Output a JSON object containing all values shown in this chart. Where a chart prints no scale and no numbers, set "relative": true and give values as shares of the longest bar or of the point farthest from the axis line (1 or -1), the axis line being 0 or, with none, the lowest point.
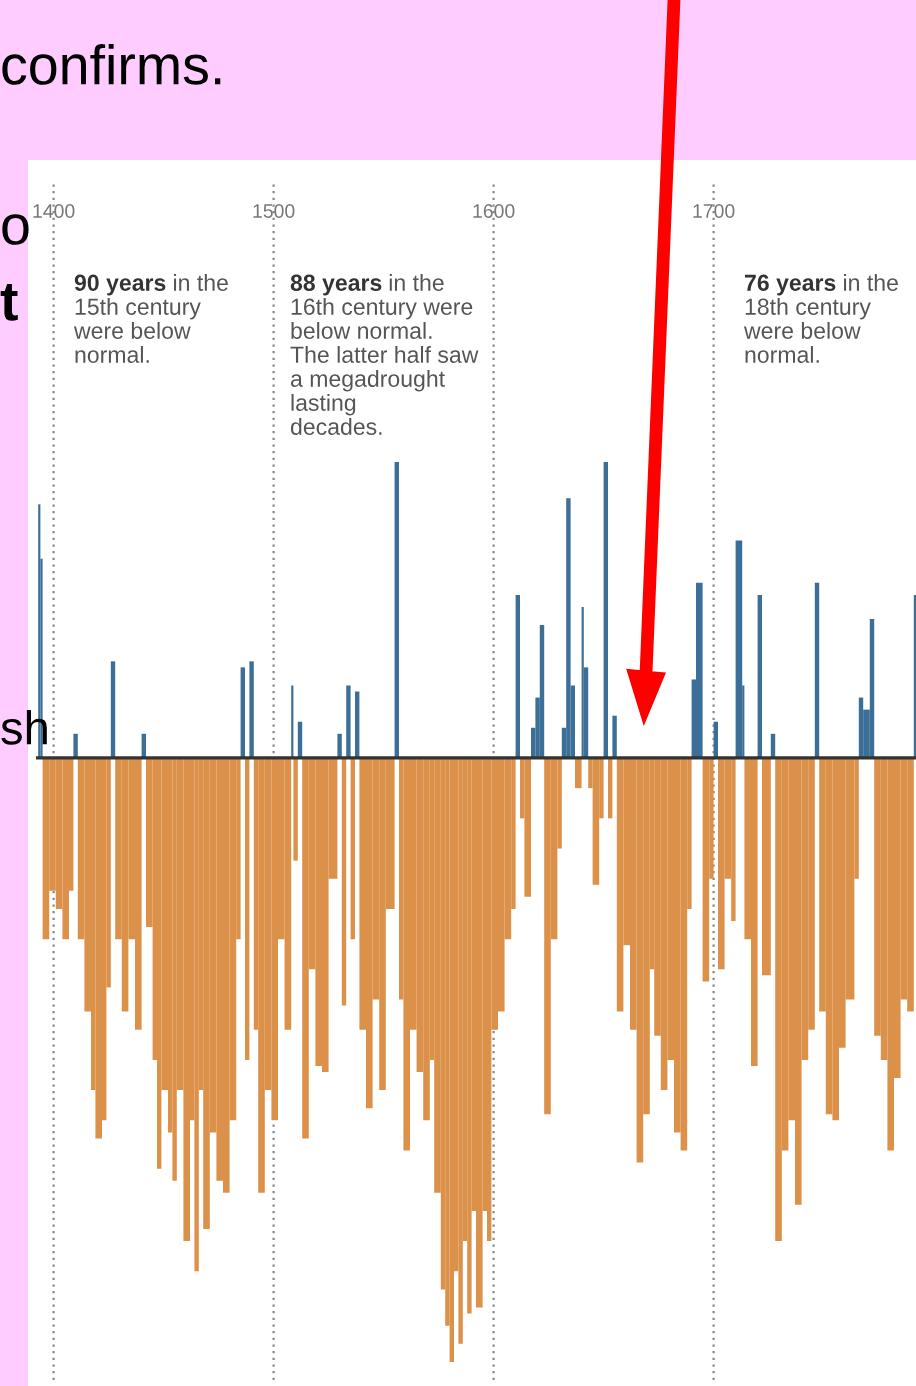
{
  "chart_data": {
    "type": "bar",
    "relative": true,
    "x": [
      1393,
      1394,
      1395,
      1398,
      1401,
      1404,
      1407,
      1409,
      1411,
      1414,
      1417,
      1419,
      1422,
      1424,
      1426,
      1428,
      1431,
      1434,
      1437,
      1440,
      1442,
      1445,
      1447,
      1449,
      1452,
      1454,
      1456,
      1459,
      1462,
      1464,
      1466,
      1468,
      1471,
      1474,
      1477,
      1480,
      1483,
      1485,
      1487,
      1489,
      1491,
      1493,
      1496,
      1499,
      1502,
      1505,
      1508,
      1509,
      1511,
      1513,
      1516,
      1519,
      1522,
      1525,
      1529,
      1531,
      1533,
      1535,
      1537,
      1539,
      1542,
      1545,
      1548,
      1551,
      1555,
      1557,
      1559,
      1562,
      1565,
      1568,
      1571,
      1573,
      1576,
      1578,
      1580,
      1582,
      1584,
      1586,
      1588,
      1590,
      1592,
      1595,
      1597,
      1599,
      1602,
      1605,
      1608,
      1610,
      1612,
      1614,
      1617,
      1619,
      1621,
      1623,
      1626,
      1629,
      1631,
      1633,
      1635,
      1637,
      1640,
      1641,
      1643,
      1645,
      1648,
      1650,
      1652,
      1654,
      1656,
      1659,
      1662,
      1665,
      1668,
      1671,
      1673,
      1676,
      1679,
      1682,
      1685,
      1688,
      1690,
      1692,
      1695,
      1698,
      1700,
      1702,
      1705,
      1708,
      1710,
      1713,
      1714,
      1717,
      1720,
      1722,
      1726,
      1728,
      1731,
      1734,
      1737,
      1740,
      1743,
      1746,
      1748,
      1751,
      1754,
      1757,
      1760,
      1764,
      1766,
      1768,
      1771,
      1773,
      1776,
      1779,
      1782,
      1785,
      1788,
      1791
    ],
    "values": [
      0.42,
      0.33,
      -0.3,
      -0.22,
      -0.25,
      -0.3,
      -0.22,
      0.04,
      -0.3,
      -0.42,
      -0.55,
      -0.63,
      -0.6,
      -0.38,
      0.16,
      -0.3,
      -0.42,
      -0.3,
      -0.45,
      0.04,
      -0.28,
      -0.5,
      -0.68,
      -0.55,
      -0.62,
      -0.7,
      -0.55,
      -0.8,
      -0.6,
      -0.85,
      -0.55,
      -0.78,
      -0.62,
      -0.7,
      -0.72,
      -0.6,
      -0.3,
      0.15,
      -0.5,
      0.16,
      -0.45,
      -0.72,
      -0.55,
      -0.6,
      -0.3,
      -0.45,
      0.12,
      -0.17,
      0.06,
      -0.63,
      -0.35,
      -0.51,
      -0.52,
      -0.2,
      0.04,
      -0.41,
      0.12,
      -0.3,
      0.11,
      -0.45,
      -0.58,
      -0.4,
      -0.55,
      -0.25,
      0.49,
      -0.4,
      -0.65,
      -0.45,
      -0.52,
      -0.6,
      -0.5,
      -0.72,
      -0.88,
      -0.94,
      -1.0,
      -0.85,
      -0.97,
      -0.8,
      -0.92,
      -0.75,
      -0.91,
      -0.75,
      -0.8,
      -0.45,
      -0.42,
      -0.3,
      -0.25,
      0.27,
      -0.1,
      -0.23,
      0.05,
      0.1,
      0.22,
      -0.59,
      -0.3,
      -0.15,
      0.05,
      0.43,
      0.12,
      -0.05,
      0.25,
      0.15,
      -0.05,
      -0.21,
      -0.1,
      0.49,
      -0.1,
      0.07,
      -0.42,
      -0.31,
      -0.45,
      -0.67,
      -0.59,
      -0.35,
      -0.46,
      -0.55,
      -0.5,
      -0.62,
      -0.65,
      -0.25,
      0.13,
      0.29,
      -0.37,
      -0.2,
      0.06,
      -0.35,
      -0.2,
      -0.27,
      0.36,
      0.12,
      -0.3,
      -0.51,
      0.27,
      -0.36,
      0.04,
      -0.8,
      -0.65,
      -0.6,
      -0.74,
      -0.5,
      -0.45,
      0.29,
      -0.42,
      -0.59,
      -0.6,
      -0.48,
      -0.4,
      -0.2,
      0.1,
      0.08,
      0.23,
      -0.46,
      -0.5,
      -0.65,
      -0.53,
      -0.4,
      -0.42,
      0.27
    ],
    "colors": [
      "#3b6f98",
      "#3b6f98",
      "#dc914a",
      "#dc914a",
      "#dc914a",
      "#dc914a",
      "#dc914a",
      "#3b6f98",
      "#dc914a",
      "#dc914a",
      "#dc914a",
      "#dc914a",
      "#dc914a",
      "#dc914a",
      "#3b6f98",
      "#dc914a",
      "#dc914a",
      "#dc914a",
      "#dc914a",
      "#3b6f98",
      "#dc914a",
      "#dc914a",
      "#dc914a",
      "#dc914a",
      "#dc914a",
      "#dc914a",
      "#dc914a",
      "#dc914a",
      "#dc914a",
      "#dc914a",
      "#dc914a",
      "#dc914a",
      "#dc914a",
      "#dc914a",
      "#dc914a",
      "#dc914a",
      "#dc914a",
      "#3b6f98",
      "#dc914a",
      "#3b6f98",
      "#dc914a",
      "#dc914a",
      "#dc914a",
      "#dc914a",
      "#dc914a",
      "#dc914a",
      "#3b6f98",
      "#dc914a",
      "#3b6f98",
      "#dc914a",
      "#dc914a",
      "#dc914a",
      "#dc914a",
      "#dc914a",
      "#3b6f98",
      "#dc914a",
      "#3b6f98",
      "#dc914a",
      "#3b6f98",
      "#dc914a",
      "#dc914a",
      "#dc914a",
      "#dc914a",
      "#dc914a",
      "#3b6f98",
      "#dc914a",
      "#dc914a",
      "#dc914a",
      "#dc914a",
      "#dc914a",
      "#dc914a",
      "#dc914a",
      "#dc914a",
      "#dc914a",
      "#dc914a",
      "#dc914a",
      "#dc914a",
      "#dc914a",
      "#dc914a",
      "#dc914a",
      "#dc914a",
      "#dc914a",
      "#dc914a",
      "#dc914a",
      "#dc914a",
      "#dc914a",
      "#dc914a",
      "#3b6f98",
      "#dc914a",
      "#dc914a",
      "#3b6f98",
      "#3b6f98",
      "#3b6f98",
      "#dc914a",
      "#dc914a",
      "#dc914a",
      "#3b6f98",
      "#3b6f98",
      "#3b6f98",
      "#dc914a",
      "#3b6f98",
      "#3b6f98",
      "#dc914a",
      "#dc914a",
      "#dc914a",
      "#3b6f98",
      "#dc914a",
      "#3b6f98",
      "#dc914a",
      "#dc914a",
      "#dc914a",
      "#dc914a",
      "#dc914a",
      "#dc914a",
      "#dc914a",
      "#dc914a",
      "#dc914a",
      "#dc914a",
      "#dc914a",
      "#dc914a",
      "#3b6f98",
      "#3b6f98",
      "#dc914a",
      "#dc914a",
      "#3b6f98",
      "#dc914a",
      "#dc914a",
      "#dc914a",
      "#3b6f98",
      "#3b6f98",
      "#dc914a",
      "#dc914a",
      "#3b6f98",
      "#dc914a",
      "#3b6f98",
      "#dc914a",
      "#dc914a",
      "#dc914a",
      "#dc914a",
      "#dc914a",
      "#dc914a",
      "#3b6f98",
      "#dc914a",
      "#dc914a",
      "#dc914a",
      "#dc914a",
      "#dc914a",
      "#dc914a",
      "#3b6f98",
      "#3b6f98",
      "#3b6f98",
      "#dc914a",
      "#dc914a",
      "#dc914a",
      "#dc914a",
      "#dc914a",
      "#dc914a",
      "#3b6f98"
    ],
    "xlim": [
      1392,
      1792
    ],
    "xticks": [
      1400,
      1500,
      1600,
      1700
    ],
    "grid": "x",
    "annotations": [
      "90 years in the\n15th century\nwere below\nnormal.",
      "88 years in the\n16th century were\nbelow normal.\nThe latter half saw\na megadrought\nlasting\ndecades.",
      "76 years in the\n18th century\nwere below\nnormal.",
      "confirms.",
      "o",
      "t",
      "sh"
    ]
  }
}
